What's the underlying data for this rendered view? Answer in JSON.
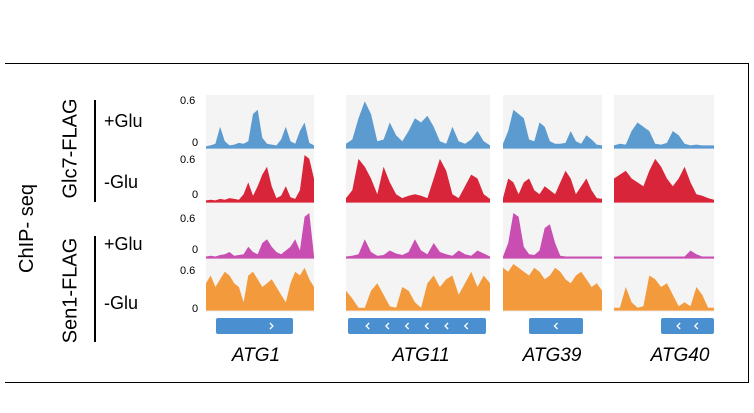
{
  "chart_data": {
    "type": "area",
    "assay_label": "ChIP- seq",
    "y_tick_max": "0.6",
    "y_tick_min": "0",
    "ylim": [
      0,
      0.6
    ],
    "groups": [
      {
        "name": "Glc7-FLAG",
        "conditions": [
          "+Glu",
          "-Glu"
        ]
      },
      {
        "name": "Sen1-FLAG",
        "conditions": [
          "+Glu",
          "-Glu"
        ]
      }
    ],
    "genes": [
      "ATG1",
      "ATG11",
      "ATG39",
      "ATG40"
    ],
    "tracks": [
      {
        "group": "Glc7-FLAG",
        "condition": "+Glu",
        "color": "#5b9bd0",
        "values": {
          "ATG1": [
            0.02,
            0.03,
            0.05,
            0.25,
            0.08,
            0.03,
            0.04,
            0.06,
            0.05,
            0.08,
            0.4,
            0.45,
            0.12,
            0.05,
            0.04,
            0.03,
            0.1,
            0.25,
            0.08,
            0.05,
            0.2,
            0.3,
            0.06,
            0.03
          ],
          "ATG11": [
            0.05,
            0.1,
            0.35,
            0.55,
            0.4,
            0.08,
            0.1,
            0.3,
            0.15,
            0.08,
            0.2,
            0.35,
            0.3,
            0.38,
            0.25,
            0.08,
            0.05,
            0.25,
            0.08,
            0.05,
            0.1,
            0.2,
            0.08,
            0.03
          ],
          "ATG39": [
            0.05,
            0.2,
            0.45,
            0.4,
            0.35,
            0.1,
            0.08,
            0.3,
            0.25,
            0.08,
            0.05,
            0.05,
            0.06,
            0.2,
            0.08,
            0.05,
            0.15,
            0.1,
            0.04,
            0.03
          ],
          "ATG40": [
            0.03,
            0.05,
            0.04,
            0.2,
            0.3,
            0.25,
            0.2,
            0.05,
            0.04,
            0.06,
            0.2,
            0.15,
            0.05,
            0.03,
            0.04,
            0.03,
            0.03,
            0.03
          ]
        }
      },
      {
        "group": "Glc7-FLAG",
        "condition": "-Glu",
        "color": "#d9253a",
        "values": {
          "ATG1": [
            0.02,
            0.03,
            0.02,
            0.04,
            0.03,
            0.05,
            0.04,
            0.03,
            0.1,
            0.25,
            0.08,
            0.2,
            0.35,
            0.45,
            0.2,
            0.05,
            0.08,
            0.2,
            0.06,
            0.04,
            0.15,
            0.62,
            0.55,
            0.3
          ],
          "ATG11": [
            0.05,
            0.15,
            0.55,
            0.45,
            0.3,
            0.1,
            0.45,
            0.25,
            0.1,
            0.05,
            0.08,
            0.1,
            0.08,
            0.05,
            0.3,
            0.55,
            0.4,
            0.1,
            0.05,
            0.2,
            0.35,
            0.3,
            0.1,
            0.04
          ],
          "ATG39": [
            0.05,
            0.3,
            0.25,
            0.1,
            0.25,
            0.3,
            0.15,
            0.1,
            0.2,
            0.15,
            0.1,
            0.25,
            0.4,
            0.3,
            0.1,
            0.2,
            0.3,
            0.15,
            0.05,
            0.04
          ],
          "ATG40": [
            0.3,
            0.35,
            0.4,
            0.3,
            0.25,
            0.2,
            0.4,
            0.55,
            0.45,
            0.3,
            0.2,
            0.3,
            0.45,
            0.25,
            0.1,
            0.08,
            0.05,
            0.03
          ]
        }
      },
      {
        "group": "Sen1-FLAG",
        "condition": "+Glu",
        "color": "#c84fb1",
        "values": {
          "ATG1": [
            0.02,
            0.03,
            0.02,
            0.04,
            0.05,
            0.08,
            0.03,
            0.04,
            0.05,
            0.15,
            0.08,
            0.05,
            0.2,
            0.25,
            0.15,
            0.08,
            0.05,
            0.1,
            0.15,
            0.25,
            0.1,
            0.55,
            0.62,
            0.03
          ],
          "ATG11": [
            0.02,
            0.03,
            0.05,
            0.25,
            0.08,
            0.03,
            0.04,
            0.1,
            0.06,
            0.04,
            0.08,
            0.25,
            0.1,
            0.05,
            0.2,
            0.08,
            0.05,
            0.03,
            0.1,
            0.05,
            0.03,
            0.1,
            0.06,
            0.02
          ],
          "ATG39": [
            0.02,
            0.2,
            0.6,
            0.55,
            0.15,
            0.05,
            0.04,
            0.1,
            0.4,
            0.45,
            0.2,
            0.03,
            0.02,
            0.02,
            0.02,
            0.02,
            0.02,
            0.02,
            0.02,
            0.02
          ],
          "ATG40": [
            0.02,
            0.02,
            0.02,
            0.02,
            0.02,
            0.02,
            0.02,
            0.02,
            0.02,
            0.02,
            0.02,
            0.02,
            0.02,
            0.1,
            0.05,
            0.02,
            0.02,
            0.02
          ]
        }
      },
      {
        "group": "Sen1-FLAG",
        "condition": "-Glu",
        "color": "#f39a3c",
        "values": {
          "ATG1": [
            0.35,
            0.45,
            0.3,
            0.4,
            0.5,
            0.45,
            0.35,
            0.3,
            0.1,
            0.45,
            0.5,
            0.4,
            0.3,
            0.35,
            0.4,
            0.3,
            0.2,
            0.1,
            0.35,
            0.5,
            0.45,
            0.55,
            0.4,
            0.3
          ],
          "ATG11": [
            0.25,
            0.15,
            0.03,
            0.03,
            0.25,
            0.35,
            0.2,
            0.05,
            0.03,
            0.3,
            0.25,
            0.1,
            0.03,
            0.35,
            0.45,
            0.3,
            0.4,
            0.45,
            0.2,
            0.35,
            0.5,
            0.3,
            0.45,
            0.35
          ],
          "ATG39": [
            0.55,
            0.5,
            0.6,
            0.55,
            0.5,
            0.45,
            0.55,
            0.5,
            0.4,
            0.45,
            0.55,
            0.5,
            0.4,
            0.35,
            0.45,
            0.5,
            0.4,
            0.3,
            0.35,
            0.25
          ],
          "ATG40": [
            0.03,
            0.03,
            0.3,
            0.1,
            0.03,
            0.05,
            0.45,
            0.4,
            0.3,
            0.35,
            0.2,
            0.05,
            0.1,
            0.05,
            0.3,
            0.2,
            0.03,
            0.03
          ]
        }
      }
    ],
    "gene_models": [
      {
        "gene": "ATG1",
        "strand": ">",
        "arrows": 1
      },
      {
        "gene": "ATG11",
        "strand": "<",
        "arrows": 6
      },
      {
        "gene": "ATG39",
        "strand": "<",
        "arrows": 1
      },
      {
        "gene": "ATG40",
        "strand": "<",
        "arrows": 2
      }
    ]
  }
}
